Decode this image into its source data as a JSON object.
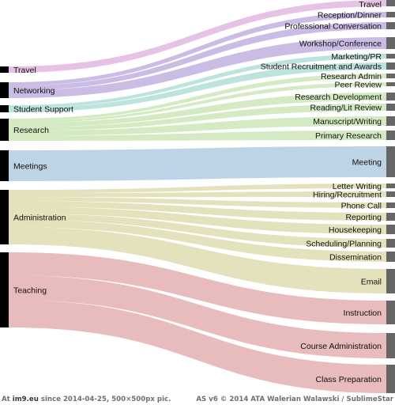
{
  "flow_opacity": 0.6,
  "bar_colors": {
    "left": "#000000",
    "right": "#666666"
  },
  "categories": [
    {
      "id": "travel",
      "label": "Travel",
      "color": "#d59ad2"
    },
    {
      "id": "networking",
      "label": "Networking",
      "color": "#a88fd6"
    },
    {
      "id": "student_support",
      "label": "Student Support",
      "color": "#8fd1c4"
    },
    {
      "id": "research",
      "label": "Research",
      "color": "#b8dc9a"
    },
    {
      "id": "meetings",
      "label": "Meetings",
      "color": "#90b7d3"
    },
    {
      "id": "administration",
      "label": "Administration",
      "color": "#d2cd91"
    },
    {
      "id": "teaching",
      "label": "Teaching",
      "color": "#d88d8f"
    }
  ],
  "activities": [
    {
      "label": "Travel",
      "category": "travel"
    },
    {
      "label": "Reception/Dinner",
      "category": "networking"
    },
    {
      "label": "Professional Conversation",
      "category": "networking"
    },
    {
      "label": "Workshop/Conference",
      "category": "networking"
    },
    {
      "label": "Marketing/PR",
      "category": "student_support"
    },
    {
      "label": "Student Recruitment and Awards",
      "category": "student_support"
    },
    {
      "label": "Research Admin",
      "category": "research"
    },
    {
      "label": "Peer Review",
      "category": "research"
    },
    {
      "label": "Research Development",
      "category": "research"
    },
    {
      "label": "Reading/Lit Review",
      "category": "research"
    },
    {
      "label": "Manuscript/Writing",
      "category": "research"
    },
    {
      "label": "Primary Research",
      "category": "research"
    },
    {
      "label": "Meeting",
      "category": "meetings"
    },
    {
      "label": "Letter Writing",
      "category": "administration"
    },
    {
      "label": "Hiring/Recruitment",
      "category": "administration"
    },
    {
      "label": "Phone Call",
      "category": "administration"
    },
    {
      "label": "Reporting",
      "category": "administration"
    },
    {
      "label": "Housekeeping",
      "category": "administration"
    },
    {
      "label": "Scheduling/Planning",
      "category": "administration"
    },
    {
      "label": "Dissemination",
      "category": "administration"
    },
    {
      "label": "Email",
      "category": "administration"
    },
    {
      "label": "Instruction",
      "category": "teaching"
    },
    {
      "label": "Course Administration",
      "category": "teaching"
    },
    {
      "label": "Class Preparation",
      "category": "teaching"
    }
  ],
  "footer": {
    "site_prefix": "At ",
    "site": "im9.eu",
    "site_suffix": " since 2014-04-25, 500×500px pic.",
    "credit": "AS v6 © 2014 ATA Walerian Walawski / SublimeStar"
  }
}
